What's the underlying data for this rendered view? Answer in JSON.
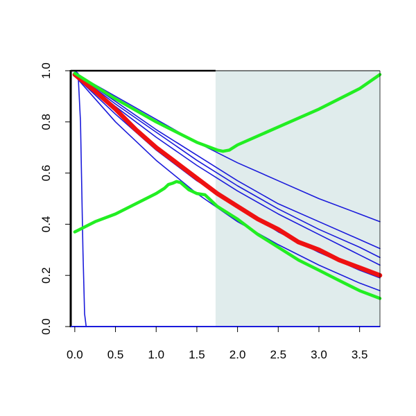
{
  "chart_data": {
    "type": "line",
    "title": "",
    "xlabel": "",
    "ylabel": "",
    "xlim": [
      -0.05,
      3.75
    ],
    "ylim": [
      0.0,
      1.0
    ],
    "x_ticks": [
      0.0,
      0.5,
      1.0,
      1.5,
      2.0,
      2.5,
      3.0,
      3.5
    ],
    "x_tick_labels": [
      "0.0",
      "0.5",
      "1.0",
      "1.5",
      "2.0",
      "2.5",
      "3.0",
      "3.5"
    ],
    "y_ticks": [
      0.0,
      0.2,
      0.4,
      0.6,
      0.8,
      1.0
    ],
    "y_tick_labels": [
      "0.0",
      "0.2",
      "0.4",
      "0.6",
      "0.8",
      "1.0"
    ],
    "grid": false,
    "legend": "none",
    "shaded_region": {
      "x_start": 1.73,
      "x_end": 3.75,
      "color": "#e0ecec"
    },
    "colors": {
      "blue": "#1a1adb",
      "red": "#ee1111",
      "green": "#22ee22"
    },
    "series": [
      {
        "color": "blue",
        "width": "thin",
        "x": [
          0.0,
          0.04,
          0.07,
          0.1,
          0.12,
          0.14,
          0.2,
          1.0,
          2.0,
          3.0,
          3.75
        ],
        "y": [
          1.0,
          0.99,
          0.8,
          0.3,
          0.05,
          0.0,
          0.0,
          0.0,
          0.0,
          0.0,
          0.0
        ]
      },
      {
        "color": "blue",
        "width": "thin",
        "x": [
          0.0,
          0.5,
          1.0,
          1.5,
          2.0,
          2.5,
          3.0,
          3.5,
          3.75
        ],
        "y": [
          0.99,
          0.9,
          0.81,
          0.72,
          0.64,
          0.57,
          0.5,
          0.44,
          0.41
        ]
      },
      {
        "color": "blue",
        "width": "thin",
        "x": [
          0.0,
          0.5,
          1.0,
          1.5,
          2.0,
          2.5,
          3.0,
          3.5,
          3.75
        ],
        "y": [
          0.99,
          0.88,
          0.77,
          0.67,
          0.57,
          0.48,
          0.41,
          0.34,
          0.305
        ]
      },
      {
        "color": "blue",
        "width": "thin",
        "x": [
          0.0,
          0.5,
          1.0,
          1.5,
          2.0,
          2.5,
          3.0,
          3.5,
          3.75
        ],
        "y": [
          0.99,
          0.87,
          0.76,
          0.65,
          0.55,
          0.46,
          0.38,
          0.31,
          0.27
        ]
      },
      {
        "color": "blue",
        "width": "thin",
        "x": [
          0.0,
          0.5,
          1.0,
          1.5,
          2.0,
          2.5,
          3.0,
          3.5,
          3.75
        ],
        "y": [
          0.99,
          0.86,
          0.74,
          0.63,
          0.53,
          0.44,
          0.36,
          0.28,
          0.24
        ]
      },
      {
        "color": "blue",
        "width": "thin",
        "x": [
          0.0,
          0.5,
          1.0,
          1.5,
          2.0,
          2.5,
          3.0,
          3.5,
          3.75
        ],
        "y": [
          0.98,
          0.83,
          0.69,
          0.57,
          0.47,
          0.37,
          0.29,
          0.22,
          0.19
        ]
      },
      {
        "color": "blue",
        "width": "thin",
        "x": [
          0.0,
          0.5,
          1.0,
          1.5,
          2.0,
          2.5,
          3.0,
          3.5,
          3.75
        ],
        "y": [
          0.98,
          0.8,
          0.65,
          0.52,
          0.41,
          0.32,
          0.24,
          0.17,
          0.14
        ]
      },
      {
        "color": "red",
        "width": "thick",
        "x": [
          0.0,
          0.25,
          0.5,
          0.75,
          1.0,
          1.25,
          1.5,
          1.75,
          2.0,
          2.25,
          2.5,
          2.75,
          3.0,
          3.25,
          3.5,
          3.75
        ],
        "y": [
          0.985,
          0.92,
          0.85,
          0.77,
          0.7,
          0.64,
          0.58,
          0.52,
          0.47,
          0.42,
          0.38,
          0.33,
          0.3,
          0.26,
          0.23,
          0.2
        ]
      },
      {
        "color": "green",
        "width": "medium",
        "x": [
          0.0,
          0.5,
          1.0,
          1.5,
          1.75,
          1.82,
          1.9,
          2.0,
          2.5,
          3.0,
          3.5,
          3.75
        ],
        "y": [
          0.99,
          0.89,
          0.8,
          0.72,
          0.69,
          0.685,
          0.69,
          0.71,
          0.78,
          0.85,
          0.93,
          0.985
        ]
      },
      {
        "color": "green",
        "width": "medium",
        "x": [
          0.0,
          0.25,
          0.5,
          0.75,
          1.0,
          1.1,
          1.15,
          1.2,
          1.25,
          1.3,
          1.4,
          1.5,
          1.6,
          1.75,
          2.0,
          2.25,
          2.5,
          2.75,
          3.0,
          3.25,
          3.5,
          3.75
        ],
        "y": [
          0.37,
          0.41,
          0.44,
          0.48,
          0.52,
          0.54,
          0.555,
          0.56,
          0.567,
          0.563,
          0.535,
          0.52,
          0.515,
          0.47,
          0.42,
          0.36,
          0.31,
          0.26,
          0.22,
          0.18,
          0.14,
          0.11
        ]
      }
    ]
  }
}
